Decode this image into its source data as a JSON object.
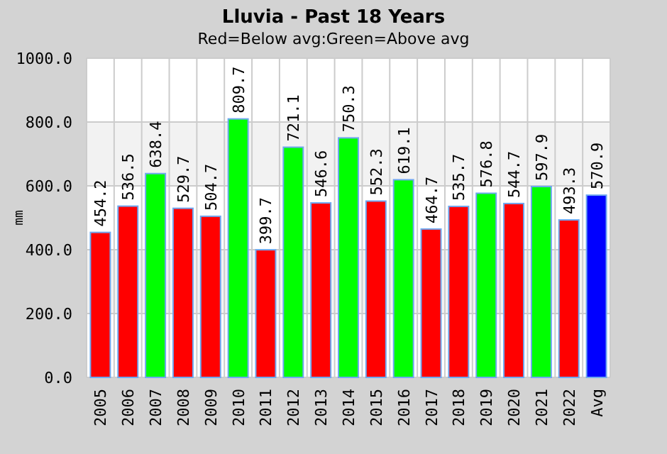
{
  "chart_data": {
    "type": "bar",
    "title": "Lluvia - Past 18 Years",
    "subtitle": "Red=Below avg:Green=Above avg",
    "ylabel": "mm",
    "categories": [
      "2005",
      "2006",
      "2007",
      "2008",
      "2009",
      "2010",
      "2011",
      "2012",
      "2013",
      "2014",
      "2015",
      "2016",
      "2017",
      "2018",
      "2019",
      "2020",
      "2021",
      "2022",
      "Avg"
    ],
    "values": [
      454.2,
      536.5,
      638.4,
      529.7,
      504.7,
      809.7,
      399.7,
      721.1,
      546.6,
      750.3,
      552.3,
      619.1,
      464.7,
      535.7,
      576.8,
      544.7,
      597.9,
      493.3,
      570.9
    ],
    "colors": [
      "#ff0000",
      "#ff0000",
      "#00ff00",
      "#ff0000",
      "#ff0000",
      "#00ff00",
      "#ff0000",
      "#00ff00",
      "#ff0000",
      "#00ff00",
      "#ff0000",
      "#00ff00",
      "#ff0000",
      "#ff0000",
      "#00ff00",
      "#ff0000",
      "#00ff00",
      "#ff0000",
      "#0000ff"
    ],
    "data_labels": true,
    "grid": true,
    "ylim": [
      0,
      1000
    ],
    "yticks": [
      {
        "value": 0,
        "label": "0.0"
      },
      {
        "value": 200,
        "label": "200.0"
      },
      {
        "value": 400,
        "label": "400.0"
      },
      {
        "value": 600,
        "label": "600.0"
      },
      {
        "value": 800,
        "label": "800.0"
      },
      {
        "value": 1000,
        "label": "1000.0"
      }
    ]
  }
}
